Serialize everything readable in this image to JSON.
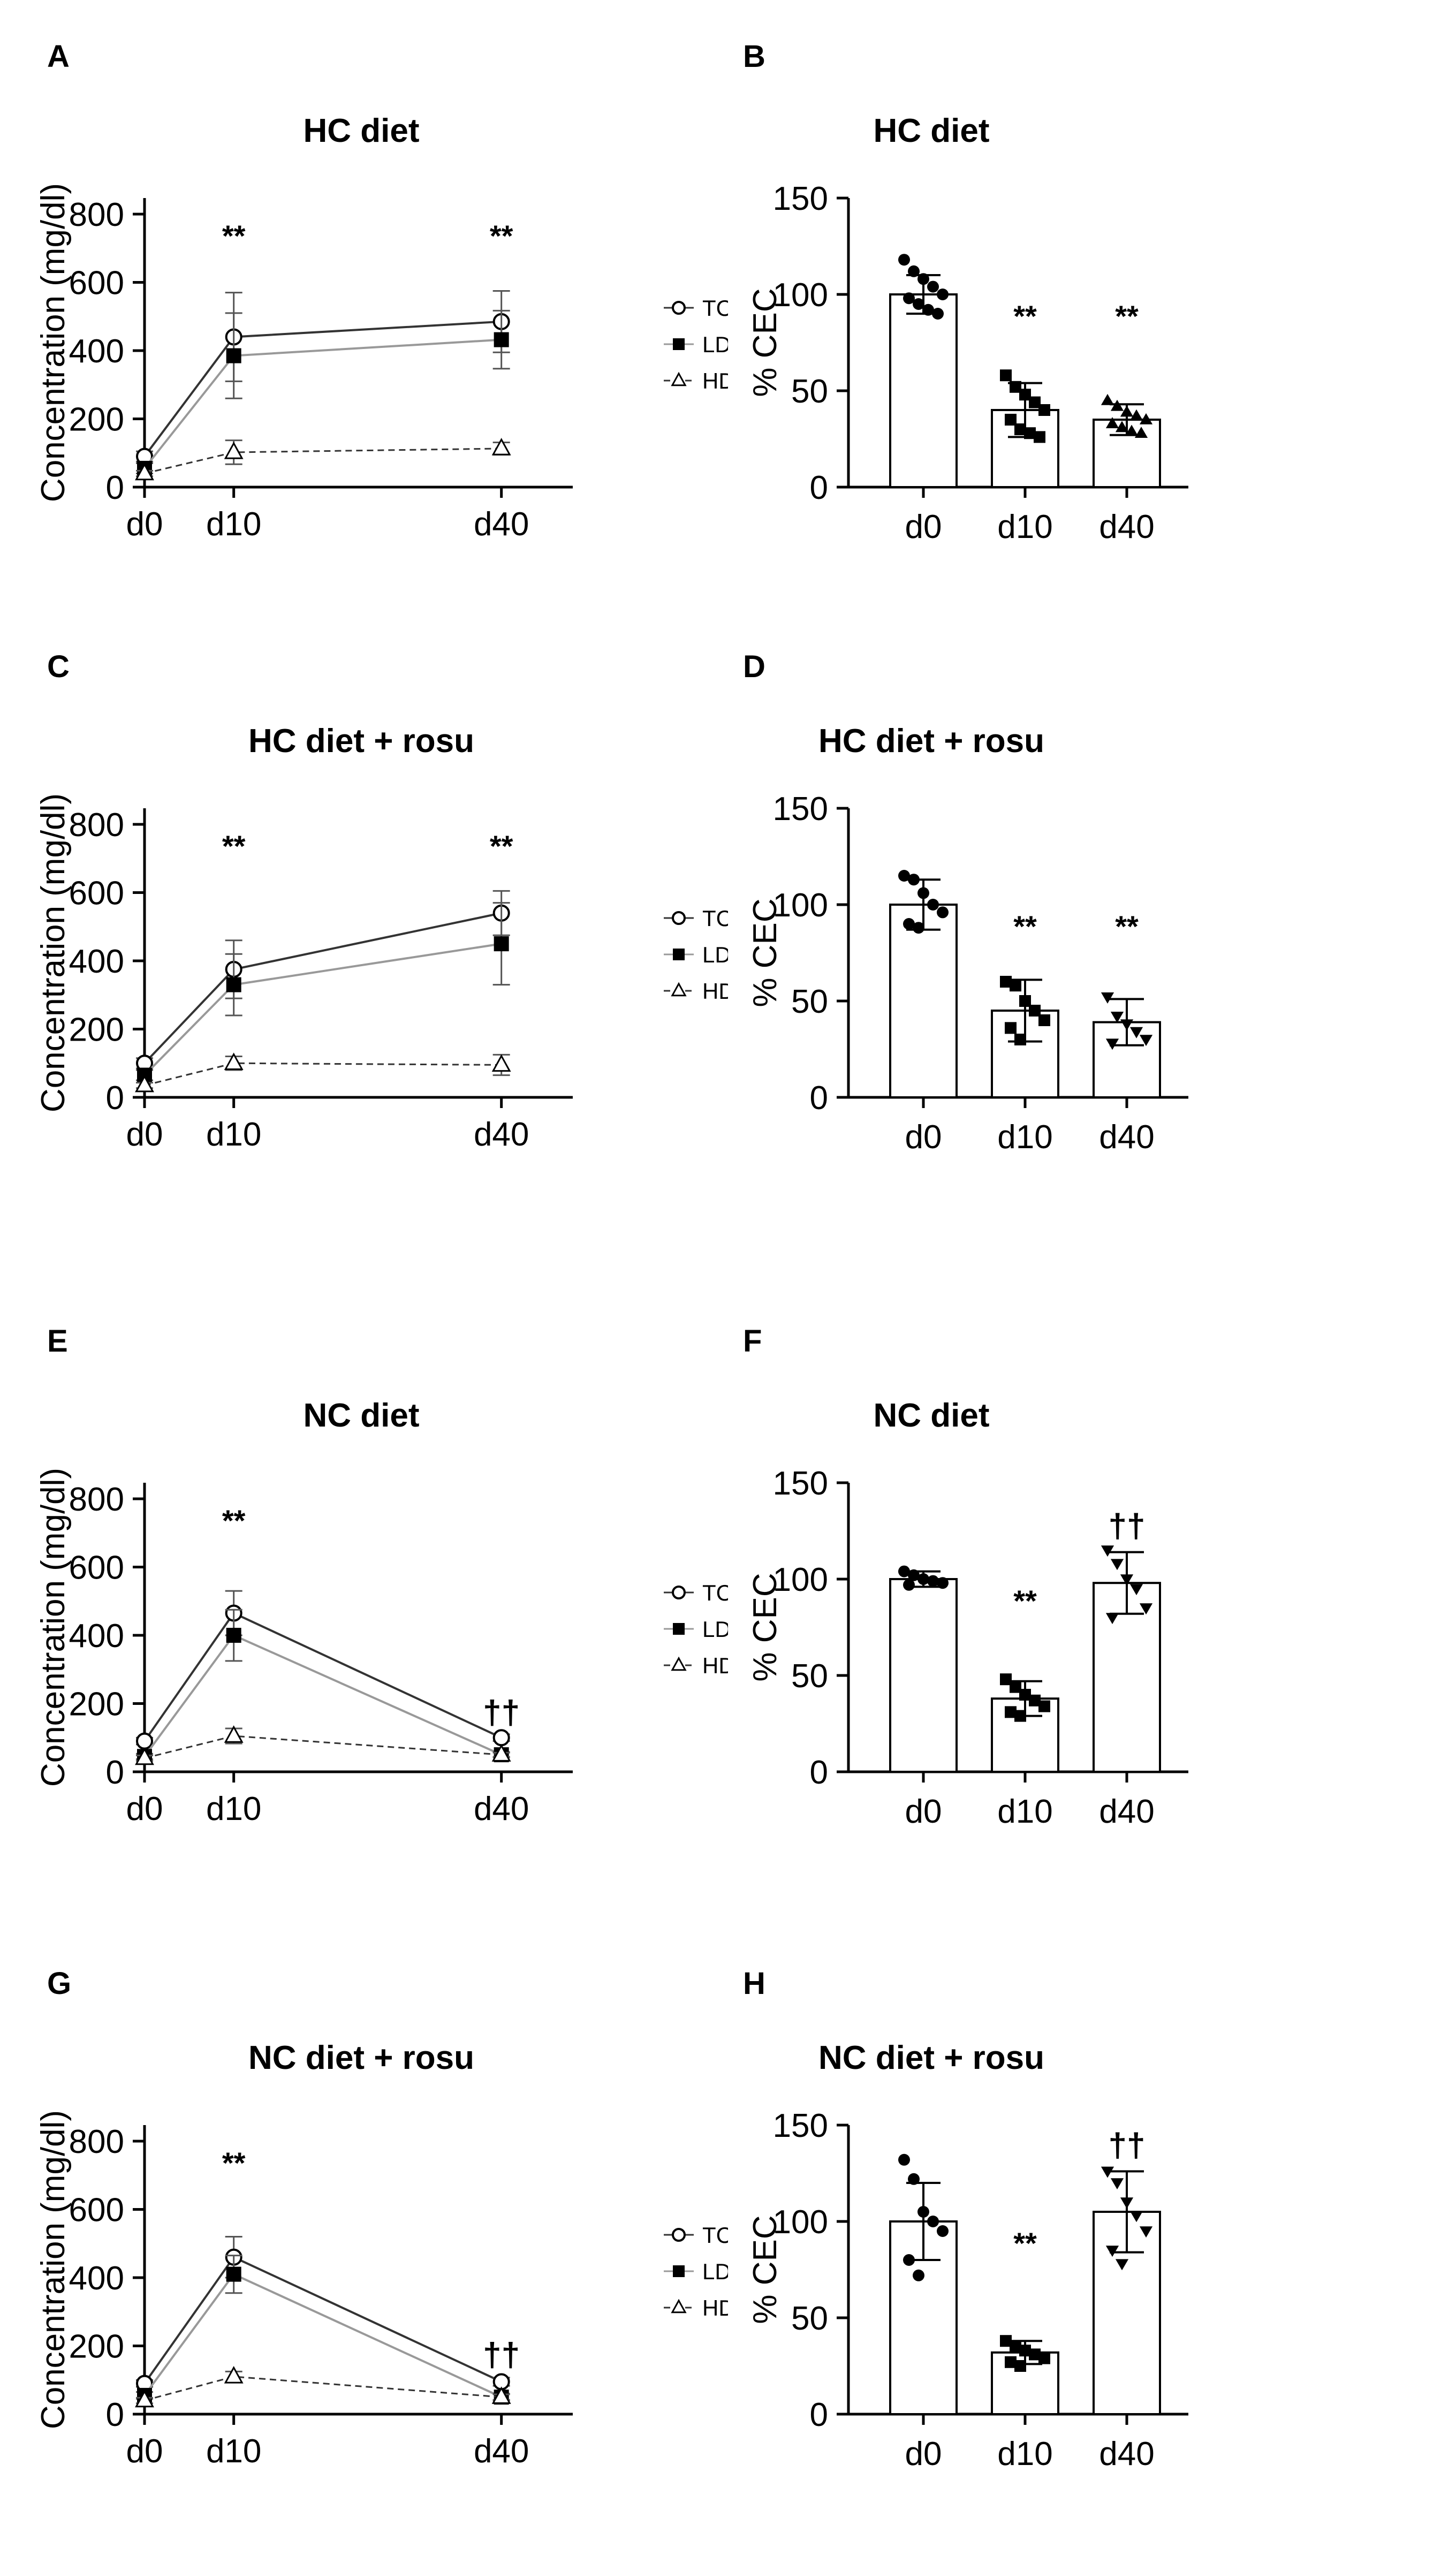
{
  "figure": {
    "description_free": true
  },
  "chart_data": [
    {
      "id": "A",
      "type": "line",
      "panel_label": "A",
      "title": "HC diet",
      "xlabel": "",
      "ylabel": "Concentration (mg/dl)",
      "categories": [
        "d0",
        "d10",
        "d40"
      ],
      "x": [
        0,
        10,
        40
      ],
      "ylim": [
        0,
        800
      ],
      "yticks": [
        0,
        200,
        400,
        600,
        800
      ],
      "series": [
        {
          "name": "TC",
          "marker": "open-circle",
          "line": "solid",
          "values": [
            90,
            440,
            485
          ],
          "err": [
            15,
            130,
            90
          ]
        },
        {
          "name": "LDL-C",
          "marker": "filled-square",
          "line": "dotted",
          "values": [
            55,
            385,
            432
          ],
          "err": [
            15,
            125,
            85
          ]
        },
        {
          "name": "HDL-C",
          "marker": "open-triangle",
          "line": "dashed",
          "values": [
            40,
            102,
            113
          ],
          "err": [
            8,
            35,
            18
          ]
        }
      ],
      "annotations": [
        {
          "x": 10,
          "text": "**"
        },
        {
          "x": 40,
          "text": "**"
        }
      ]
    },
    {
      "id": "B",
      "type": "bar",
      "panel_label": "B",
      "title": "HC diet",
      "ylabel": "% CEC",
      "categories": [
        "d0",
        "d10",
        "d40"
      ],
      "values": [
        100,
        40,
        35
      ],
      "err": [
        10,
        14,
        8
      ],
      "ylim": [
        0,
        150
      ],
      "yticks": [
        0,
        50,
        100,
        150
      ],
      "markers": [
        "circle",
        "square",
        "triangle-up"
      ],
      "points": [
        [
          118,
          112,
          108,
          104,
          100,
          98,
          95,
          92,
          90
        ],
        [
          58,
          52,
          48,
          44,
          40,
          35,
          30,
          28,
          26
        ],
        [
          45,
          42,
          39,
          37,
          35,
          33,
          31,
          29,
          28
        ]
      ],
      "annotations": [
        {
          "category": "d10",
          "text": "**"
        },
        {
          "category": "d40",
          "text": "**"
        }
      ]
    },
    {
      "id": "C",
      "type": "line",
      "panel_label": "C",
      "title": "HC diet + rosu",
      "xlabel": "",
      "ylabel": "Concentration (mg/dl)",
      "categories": [
        "d0",
        "d10",
        "d40"
      ],
      "x": [
        0,
        10,
        40
      ],
      "ylim": [
        0,
        800
      ],
      "yticks": [
        0,
        200,
        400,
        600,
        800
      ],
      "series": [
        {
          "name": "TC",
          "marker": "open-circle",
          "line": "solid",
          "values": [
            100,
            375,
            540
          ],
          "err": [
            15,
            85,
            65
          ]
        },
        {
          "name": "LDL-C",
          "marker": "filled-square",
          "line": "dotted",
          "values": [
            65,
            330,
            450
          ],
          "err": [
            15,
            90,
            120
          ]
        },
        {
          "name": "HDL-C",
          "marker": "open-triangle",
          "line": "dashed",
          "values": [
            35,
            100,
            95
          ],
          "err": [
            8,
            20,
            30
          ]
        }
      ],
      "annotations": [
        {
          "x": 10,
          "text": "**"
        },
        {
          "x": 40,
          "text": "**"
        }
      ]
    },
    {
      "id": "D",
      "type": "bar",
      "panel_label": "D",
      "title": "HC diet + rosu",
      "ylabel": "% CEC",
      "categories": [
        "d0",
        "d10",
        "d40"
      ],
      "values": [
        100,
        45,
        39
      ],
      "err": [
        13,
        16,
        12
      ],
      "ylim": [
        0,
        150
      ],
      "yticks": [
        0,
        50,
        100,
        150
      ],
      "markers": [
        "circle",
        "square",
        "triangle-down"
      ],
      "points": [
        [
          115,
          113,
          106,
          100,
          96,
          90,
          88
        ],
        [
          60,
          58,
          50,
          45,
          40,
          36,
          30
        ],
        [
          52,
          42,
          38,
          34,
          30,
          28
        ]
      ],
      "annotations": [
        {
          "category": "d10",
          "text": "**"
        },
        {
          "category": "d40",
          "text": "**"
        }
      ]
    },
    {
      "id": "E",
      "type": "line",
      "panel_label": "E",
      "title": "NC diet",
      "xlabel": "",
      "ylabel": "Concentration (mg/dl)",
      "categories": [
        "d0",
        "d10",
        "d40"
      ],
      "x": [
        0,
        10,
        40
      ],
      "ylim": [
        0,
        800
      ],
      "yticks": [
        0,
        200,
        400,
        600,
        800
      ],
      "series": [
        {
          "name": "TC",
          "marker": "open-circle",
          "line": "solid",
          "values": [
            90,
            465,
            100
          ],
          "err": [
            10,
            65,
            10
          ]
        },
        {
          "name": "LDL-C",
          "marker": "filled-square",
          "line": "dotted",
          "values": [
            45,
            400,
            50
          ],
          "err": [
            8,
            75,
            8
          ]
        },
        {
          "name": "HDL-C",
          "marker": "open-triangle",
          "line": "dashed",
          "values": [
            40,
            105,
            50
          ],
          "err": [
            8,
            22,
            6
          ]
        }
      ],
      "annotations": [
        {
          "x": 10,
          "text": "**"
        },
        {
          "x": 40,
          "text": "††"
        }
      ]
    },
    {
      "id": "F",
      "type": "bar",
      "panel_label": "F",
      "title": "NC diet",
      "ylabel": "% CEC",
      "categories": [
        "d0",
        "d10",
        "d40"
      ],
      "values": [
        100,
        38,
        98
      ],
      "err": [
        4,
        9,
        16
      ],
      "ylim": [
        0,
        150
      ],
      "yticks": [
        0,
        50,
        100,
        150
      ],
      "markers": [
        "circle",
        "square",
        "triangle-down"
      ],
      "points": [
        [
          104,
          102,
          100,
          99,
          98,
          97
        ],
        [
          48,
          44,
          40,
          37,
          34,
          31,
          29
        ],
        [
          115,
          108,
          100,
          95,
          85,
          80
        ]
      ],
      "annotations": [
        {
          "category": "d10",
          "text": "**"
        },
        {
          "category": "d40",
          "text": "††"
        }
      ]
    },
    {
      "id": "G",
      "type": "line",
      "panel_label": "G",
      "title": "NC diet + rosu",
      "xlabel": "",
      "ylabel": "Concentration (mg/dl)",
      "categories": [
        "d0",
        "d10",
        "d40"
      ],
      "x": [
        0,
        10,
        40
      ],
      "ylim": [
        0,
        800
      ],
      "yticks": [
        0,
        200,
        400,
        600,
        800
      ],
      "series": [
        {
          "name": "TC",
          "marker": "open-circle",
          "line": "solid",
          "values": [
            90,
            460,
            95
          ],
          "err": [
            10,
            60,
            12
          ]
        },
        {
          "name": "LDL-C",
          "marker": "filled-square",
          "line": "dotted",
          "values": [
            55,
            410,
            50
          ],
          "err": [
            10,
            55,
            10
          ]
        },
        {
          "name": "HDL-C",
          "marker": "open-triangle",
          "line": "dashed",
          "values": [
            40,
            110,
            50
          ],
          "err": [
            8,
            15,
            8
          ]
        }
      ],
      "annotations": [
        {
          "x": 10,
          "text": "**"
        },
        {
          "x": 40,
          "text": "††"
        }
      ]
    },
    {
      "id": "H",
      "type": "bar",
      "panel_label": "H",
      "title": "NC diet + rosu",
      "ylabel": "% CEC",
      "categories": [
        "d0",
        "d10",
        "d40"
      ],
      "values": [
        100,
        32,
        105
      ],
      "err": [
        20,
        6,
        21
      ],
      "ylim": [
        0,
        150
      ],
      "yticks": [
        0,
        50,
        100,
        150
      ],
      "markers": [
        "circle",
        "square",
        "triangle-down"
      ],
      "points": [
        [
          132,
          122,
          105,
          100,
          95,
          80,
          72
        ],
        [
          38,
          35,
          33,
          31,
          29,
          27,
          25
        ],
        [
          126,
          120,
          110,
          103,
          95,
          85,
          78
        ]
      ],
      "annotations": [
        {
          "category": "d10",
          "text": "**"
        },
        {
          "category": "d40",
          "text": "††"
        }
      ]
    }
  ]
}
